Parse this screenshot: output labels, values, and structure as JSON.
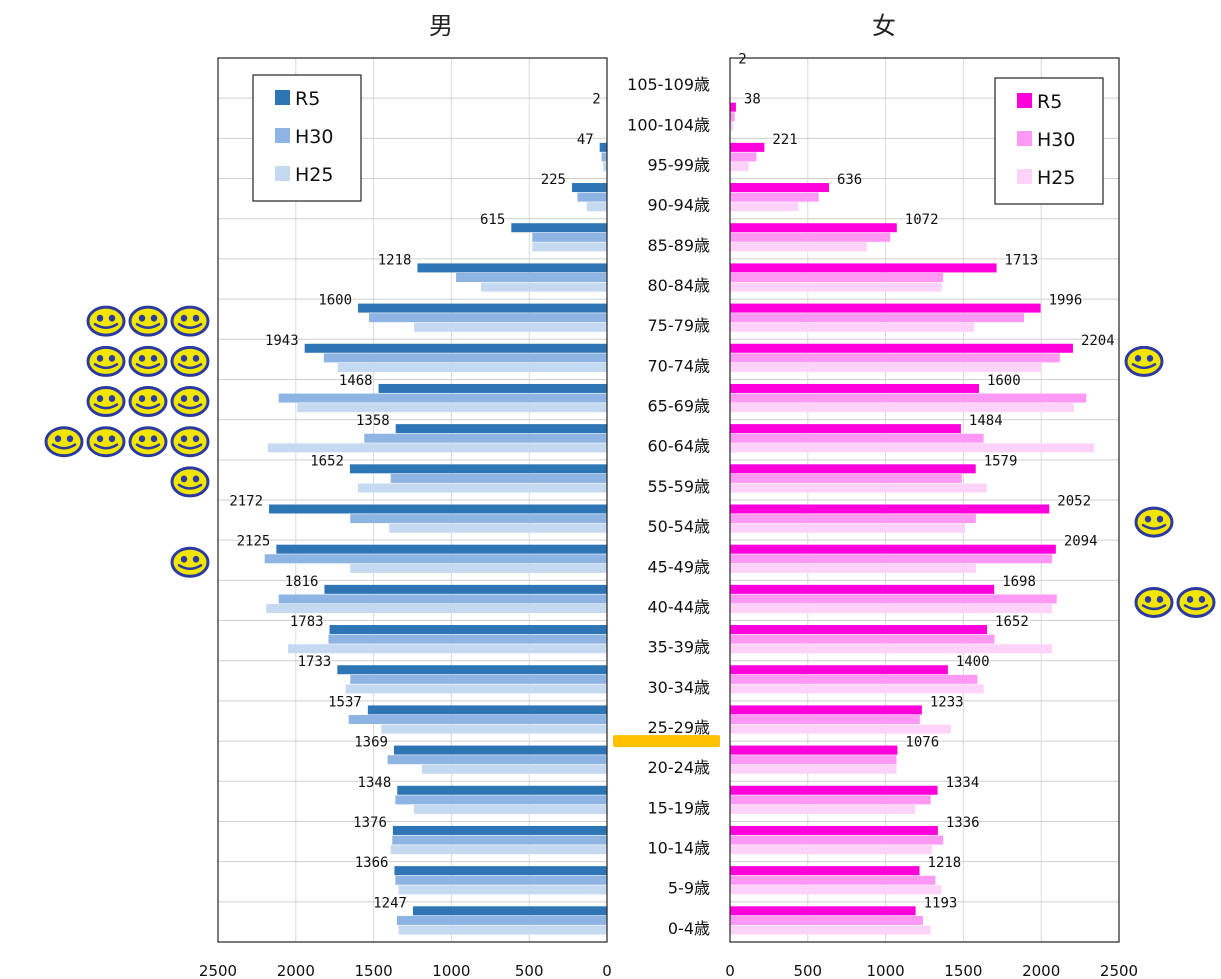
{
  "title": "",
  "male_label": "男",
  "female_label": "女",
  "chart_data": {
    "type": "bar",
    "orientation": "horizontal",
    "title": "",
    "xlim": [
      0,
      2500
    ],
    "xticks": [
      0,
      500,
      1000,
      1500,
      2000,
      2500
    ],
    "categories": [
      "105-109歳",
      "100-104歳",
      "95-99歳",
      "90-94歳",
      "85-89歳",
      "80-84歳",
      "75-79歳",
      "70-74歳",
      "65-69歳",
      "60-64歳",
      "55-59歳",
      "50-54歳",
      "45-49歳",
      "40-44歳",
      "35-39歳",
      "30-34歳",
      "25-29歳",
      "20-24歳",
      "15-19歳",
      "10-14歳",
      "5-9歳",
      "0-4歳"
    ],
    "male": {
      "label": "男",
      "series": [
        {
          "name": "R5",
          "color": "#2e75b6",
          "values": [
            0,
            2,
            47,
            225,
            615,
            1218,
            1600,
            1943,
            1468,
            1358,
            1652,
            2172,
            2125,
            1816,
            1783,
            1733,
            1537,
            1369,
            1348,
            1376,
            1366,
            1247
          ]
        },
        {
          "name": "H30",
          "color": "#8db4e2",
          "values": [
            0,
            1,
            35,
            190,
            480,
            970,
            1530,
            1820,
            2110,
            1560,
            1390,
            1650,
            2200,
            2110,
            1790,
            1650,
            1660,
            1410,
            1360,
            1380,
            1360,
            1350
          ]
        },
        {
          "name": "H25",
          "color": "#c5d9f1",
          "values": [
            0,
            1,
            25,
            130,
            480,
            810,
            1240,
            1730,
            1990,
            2180,
            1600,
            1400,
            1650,
            2190,
            2050,
            1680,
            1450,
            1190,
            1240,
            1390,
            1340,
            1340
          ]
        }
      ]
    },
    "female": {
      "label": "女",
      "series": [
        {
          "name": "R5",
          "color": "#ff00dd",
          "values": [
            2,
            38,
            221,
            636,
            1072,
            1713,
            1996,
            2204,
            1600,
            1484,
            1579,
            2052,
            2094,
            1698,
            1652,
            1400,
            1233,
            1076,
            1334,
            1336,
            1218,
            1193
          ]
        },
        {
          "name": "H30",
          "color": "#ff99f5",
          "values": [
            1,
            30,
            170,
            570,
            1030,
            1370,
            1890,
            2120,
            2290,
            1630,
            1490,
            1580,
            2070,
            2100,
            1700,
            1590,
            1220,
            1070,
            1290,
            1370,
            1320,
            1240
          ]
        },
        {
          "name": "H25",
          "color": "#ffd2fa",
          "values": [
            1,
            20,
            120,
            440,
            880,
            1360,
            1570,
            2000,
            2210,
            2340,
            1650,
            1510,
            1580,
            2070,
            2070,
            1630,
            1420,
            1070,
            1190,
            1300,
            1360,
            1290
          ]
        }
      ]
    },
    "value_labels_series": "R5",
    "legend_entries": [
      "R5",
      "H30",
      "H25"
    ],
    "legend_position": "top"
  },
  "markers": {
    "icon": "smiley-face-icon",
    "face_color": "#f2e500",
    "outline_color": "#2b3aa0",
    "male_counts": [
      0,
      0,
      0,
      0,
      0,
      0,
      3,
      3,
      3,
      4,
      1,
      0,
      1,
      0,
      0,
      0,
      0,
      0,
      0,
      0,
      0,
      0
    ],
    "female_counts": [
      0,
      0,
      0,
      0,
      0,
      0,
      0,
      1,
      0,
      0,
      0,
      1,
      0,
      2,
      0,
      0,
      0,
      0,
      0,
      0,
      0,
      0
    ],
    "divider_color": "#ffc000",
    "divider_between": [
      "25-29歳",
      "20-24歳"
    ]
  }
}
